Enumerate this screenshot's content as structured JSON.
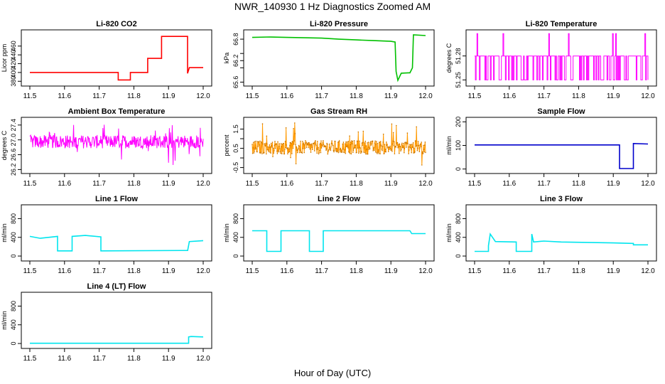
{
  "title": "NWR_140930  1 Hz Diagnostics Zoomed AM",
  "xlabel": "Hour of Day (UTC)",
  "chart_data": [
    {
      "type": "line",
      "title": "Li-820 CO2",
      "ylabel": "Licor ppm",
      "color": "#ff0000",
      "xlim": [
        11.5,
        12.0
      ],
      "xticks": [
        "11.5",
        "11.6",
        "11.7",
        "11.8",
        "11.9",
        "12.0"
      ],
      "ylim": [
        374,
        492
      ],
      "yticks": [
        "380",
        "400",
        "420",
        "440",
        "460"
      ],
      "series": [
        {
          "x": [
            11.5,
            11.755,
            11.755,
            11.79,
            11.79,
            11.84,
            11.84,
            11.88,
            11.88,
            11.955,
            11.955,
            11.96,
            12.0
          ],
          "y": [
            400,
            400,
            383,
            383,
            400,
            400,
            432,
            432,
            482,
            482,
            398,
            411,
            411
          ]
        }
      ]
    },
    {
      "type": "line",
      "title": "Li-820 Pressure",
      "ylabel": "kPa",
      "color": "#00c000",
      "xlim": [
        11.5,
        12.0
      ],
      "xticks": [
        "11.5",
        "11.6",
        "11.7",
        "11.8",
        "11.9",
        "12.0"
      ],
      "ylim": [
        65.55,
        67.0
      ],
      "yticks": [
        "65.6",
        "66.2",
        "66.8"
      ],
      "yticks_extra": [
        "66.0",
        "66.4"
      ],
      "series": [
        {
          "x": [
            11.5,
            11.55,
            11.6,
            11.65,
            11.7,
            11.75,
            11.8,
            11.85,
            11.9,
            11.912,
            11.915,
            11.92,
            11.925,
            11.93,
            11.95,
            11.955,
            11.962,
            11.965,
            12.0
          ],
          "y": [
            66.85,
            66.86,
            66.85,
            66.84,
            66.83,
            66.8,
            66.78,
            66.76,
            66.74,
            66.72,
            65.9,
            65.65,
            65.75,
            65.85,
            65.86,
            65.86,
            66.0,
            66.92,
            66.9
          ]
        }
      ]
    },
    {
      "type": "line",
      "title": "Li-820 Temperature",
      "ylabel": "degrees C",
      "color": "#ff00ff",
      "xlim": [
        11.5,
        12.0
      ],
      "xticks": [
        "11.5",
        "11.6",
        "11.7",
        "11.8",
        "11.9",
        "12.0"
      ],
      "ylim": [
        51.245,
        51.31
      ],
      "yticks": [
        "51.25",
        "51.28"
      ],
      "base_value": 51.28,
      "low_value": 51.25,
      "high_value": 51.308
    },
    {
      "type": "line",
      "title": "Ambient Box Temperature",
      "ylabel": "degrees C",
      "color": "#ff00ff",
      "xlim": [
        11.5,
        12.0
      ],
      "xticks": [
        "11.5",
        "11.6",
        "11.7",
        "11.8",
        "11.9",
        "12.0"
      ],
      "ylim": [
        26.15,
        27.55
      ],
      "yticks": [
        "26.2",
        "26.6",
        "27.0",
        "27.4"
      ],
      "band_center": 26.95,
      "band_half_width": 0.18,
      "spike_range": [
        26.2,
        27.45
      ]
    },
    {
      "type": "line",
      "title": "Gas Stream RH",
      "ylabel": "percent",
      "color": "#ff9900",
      "xlim": [
        11.5,
        12.0
      ],
      "xticks": [
        "11.5",
        "11.6",
        "11.7",
        "11.8",
        "11.9",
        "12.0"
      ],
      "ylim": [
        -0.7,
        2.0
      ],
      "yticks": [
        "-0.5",
        "0.5",
        "1.5"
      ],
      "yticks_extra": [
        "0.0",
        "1.0"
      ],
      "band_center": 0.55,
      "band_half_width": 0.35,
      "spike_range": [
        -0.6,
        1.9
      ]
    },
    {
      "type": "line",
      "title": "Sample Flow",
      "ylabel": "ml/min",
      "color": "#0000cc",
      "xlim": [
        11.5,
        12.0
      ],
      "xticks": [
        "11.5",
        "11.6",
        "11.7",
        "11.8",
        "11.9",
        "12.0"
      ],
      "ylim": [
        -10,
        210
      ],
      "yticks": [
        "0",
        "100",
        "200"
      ],
      "series": [
        {
          "x": [
            11.5,
            11.918,
            11.918,
            11.958,
            11.958,
            12.0
          ],
          "y": [
            102,
            102,
            2,
            2,
            108,
            106
          ]
        }
      ]
    },
    {
      "type": "line",
      "title": "Line 1 Flow",
      "ylabel": "ml/min",
      "color": "#00e5ee",
      "xlim": [
        11.5,
        12.0
      ],
      "xticks": [
        "11.5",
        "11.6",
        "11.7",
        "11.8",
        "11.9",
        "12.0"
      ],
      "ylim": [
        -60,
        1050
      ],
      "yticks": [
        "0",
        "400",
        "800"
      ],
      "series": [
        {
          "x": [
            11.5,
            11.53,
            11.58,
            11.58,
            11.622,
            11.622,
            11.66,
            11.705,
            11.705,
            11.955,
            11.955,
            11.96,
            12.0
          ],
          "y": [
            420,
            380,
            420,
            110,
            110,
            420,
            440,
            410,
            110,
            120,
            110,
            310,
            330
          ]
        }
      ]
    },
    {
      "type": "line",
      "title": "Line 2 Flow",
      "ylabel": "ml/min",
      "color": "#00e5ee",
      "xlim": [
        11.5,
        12.0
      ],
      "xticks": [
        "11.5",
        "11.6",
        "11.7",
        "11.8",
        "11.9",
        "12.0"
      ],
      "ylim": [
        -60,
        1050
      ],
      "yticks": [
        "0",
        "400",
        "800"
      ],
      "series": [
        {
          "x": [
            11.5,
            11.542,
            11.542,
            11.583,
            11.583,
            11.665,
            11.665,
            11.705,
            11.705,
            11.955,
            11.96,
            12.0
          ],
          "y": [
            540,
            540,
            100,
            100,
            540,
            540,
            100,
            100,
            540,
            540,
            480,
            480
          ]
        }
      ]
    },
    {
      "type": "line",
      "title": "Line 3 Flow",
      "ylabel": "ml/min",
      "color": "#00e5ee",
      "xlim": [
        11.5,
        12.0
      ],
      "xticks": [
        "11.5",
        "11.6",
        "11.7",
        "11.8",
        "11.9",
        "12.0"
      ],
      "ylim": [
        -60,
        1050
      ],
      "yticks": [
        "0",
        "400",
        "800"
      ],
      "series": [
        {
          "x": [
            11.5,
            11.54,
            11.54,
            11.545,
            11.56,
            11.62,
            11.62,
            11.665,
            11.665,
            11.67,
            11.7,
            11.75,
            11.9,
            11.958,
            11.958,
            12.0
          ],
          "y": [
            100,
            100,
            220,
            470,
            310,
            300,
            100,
            100,
            470,
            300,
            320,
            300,
            280,
            270,
            240,
            240
          ]
        }
      ]
    },
    {
      "type": "line",
      "title": "Line 4 (LT) Flow",
      "ylabel": "ml/min",
      "color": "#00e5ee",
      "xlim": [
        11.5,
        12.0
      ],
      "xticks": [
        "11.5",
        "11.6",
        "11.7",
        "11.8",
        "11.9",
        "12.0"
      ],
      "ylim": [
        -60,
        1050
      ],
      "yticks": [
        "0",
        "400",
        "800"
      ],
      "series": [
        {
          "x": [
            11.5,
            11.958,
            11.958,
            11.965,
            12.0
          ],
          "y": [
            5,
            5,
            140,
            150,
            140
          ]
        }
      ]
    }
  ]
}
